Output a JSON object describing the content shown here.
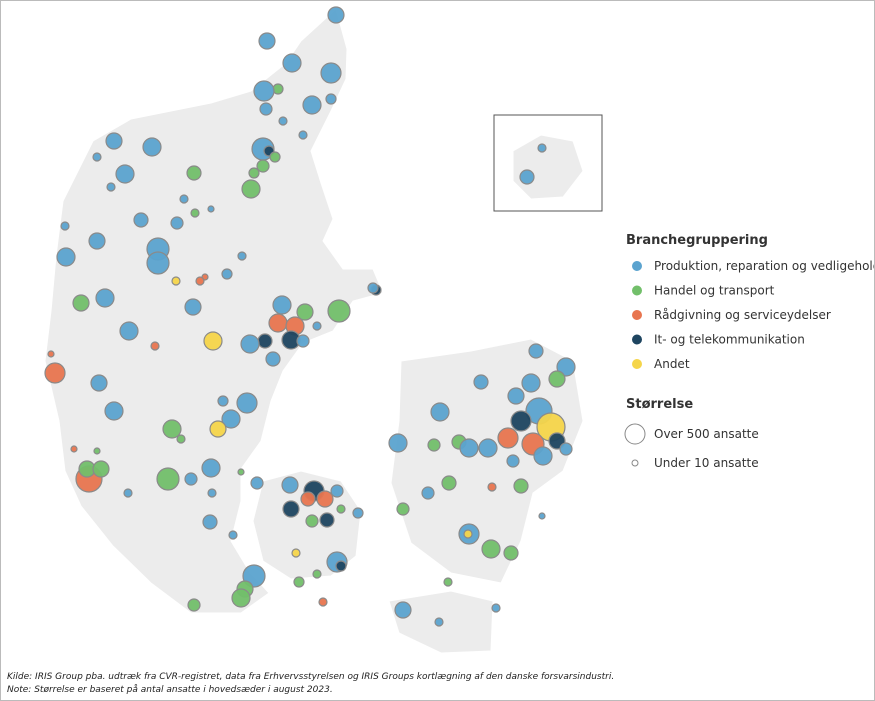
{
  "legend": {
    "title": "Branchegruppering",
    "items": [
      {
        "label": "Produktion, reparation og vedligehold",
        "color": "#5ba3cf"
      },
      {
        "label": "Handel og transport",
        "color": "#72bf6a"
      },
      {
        "label": "Rådgivning og serviceydelser",
        "color": "#e8754f"
      },
      {
        "label": "It- og telekommunikation",
        "color": "#1e4560"
      },
      {
        "label": "Andet",
        "color": "#f5d54a"
      }
    ]
  },
  "size_legend": {
    "title": "Størrelse",
    "items": [
      "Over 500 ansatte",
      "Under 10 ansatte"
    ]
  },
  "footnotes": [
    "Kilde: IRIS Group pba. udtræk fra CVR-registret, data fra Erhvervsstyrelsen og IRIS Groups kortlægning af den danske forsvarsindustri.",
    "Note: Størrelse er baseret på antal ansatte i hovedsæder i august 2023."
  ]
}
